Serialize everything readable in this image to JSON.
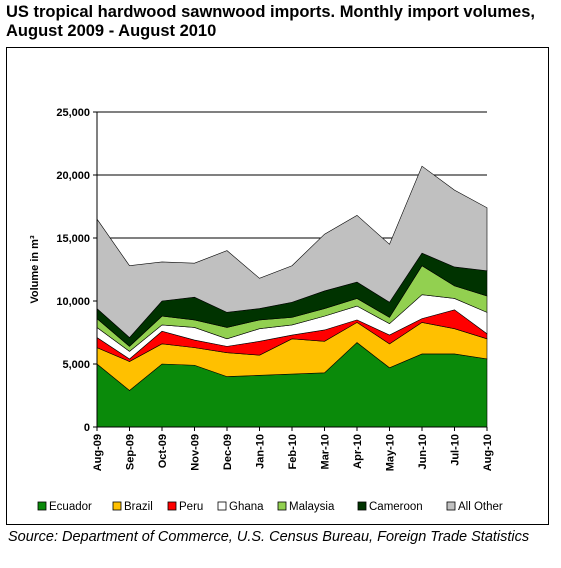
{
  "title": "US tropical hardwood sawnwood imports. Monthly import volumes, August 2009 - August 2010",
  "source": "Source: Department of Commerce, U.S. Census Bureau, Foreign Trade Statistics",
  "chart_data": {
    "type": "area",
    "stacked": true,
    "title": "US tropical hardwood sawnwood imports. Monthly import volumes, August 2009 - August 2010",
    "ylabel": "Volume in m³",
    "xlabel": "",
    "ylim": [
      0,
      25000
    ],
    "yticks": [
      0,
      5000,
      10000,
      15000,
      20000,
      25000
    ],
    "ytick_labels": [
      "0",
      "5,000",
      "10,000",
      "15,000",
      "20,000",
      "25,000"
    ],
    "grid": "horizontal major gridlines",
    "legend": "bottom",
    "categories": [
      "Aug-09",
      "Sep-09",
      "Oct-09",
      "Nov-09",
      "Dec-09",
      "Jan-10",
      "Feb-10",
      "Mar-10",
      "Apr-10",
      "May-10",
      "Jun-10",
      "Jul-10",
      "Aug-10"
    ],
    "series": [
      {
        "name": "Ecuador",
        "color": "#0a8a0a",
        "values": [
          5000,
          2900,
          5000,
          4900,
          4000,
          4100,
          4200,
          4300,
          6700,
          4700,
          5800,
          5800,
          5400
        ]
      },
      {
        "name": "Brazil",
        "color": "#ffc000",
        "values": [
          1300,
          2300,
          1600,
          1400,
          1900,
          1600,
          2800,
          2500,
          1600,
          1900,
          2500,
          2000,
          1600
        ]
      },
      {
        "name": "Peru",
        "color": "#ff0000",
        "values": [
          800,
          200,
          1000,
          600,
          500,
          1100,
          300,
          900,
          200,
          700,
          300,
          1500,
          400
        ]
      },
      {
        "name": "Ghana",
        "color": "#ffffff",
        "values": [
          800,
          600,
          500,
          1000,
          600,
          1000,
          800,
          1100,
          1100,
          900,
          1900,
          900,
          1700
        ]
      },
      {
        "name": "Malaysia",
        "color": "#92d050",
        "values": [
          700,
          400,
          700,
          600,
          900,
          700,
          600,
          600,
          600,
          500,
          2300,
          1000,
          1300
        ]
      },
      {
        "name": "Cameroon",
        "color": "#003300",
        "values": [
          800,
          700,
          1200,
          1800,
          1200,
          900,
          1200,
          1400,
          1300,
          1200,
          1000,
          1500,
          2000
        ]
      },
      {
        "name": "All Other",
        "color": "#c0c0c0",
        "values": [
          7100,
          5700,
          3100,
          2700,
          4900,
          2400,
          2900,
          4500,
          5300,
          4600,
          6900,
          6100,
          5000
        ]
      }
    ]
  }
}
